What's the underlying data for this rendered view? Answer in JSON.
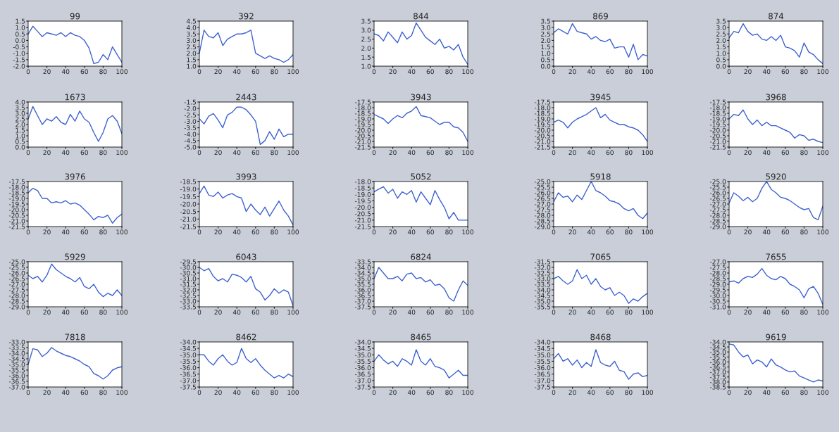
{
  "chart_data": [
    {
      "type": "line",
      "title": "99",
      "x": [
        0,
        5,
        10,
        15,
        20,
        25,
        30,
        35,
        40,
        45,
        50,
        55,
        60,
        65,
        70,
        75,
        80,
        85,
        90,
        95,
        100
      ],
      "series": [
        {
          "color": "#3d62d0",
          "values": [
            0.5,
            1.1,
            0.7,
            0.3,
            0.6,
            0.5,
            0.4,
            0.6,
            0.3,
            0.6,
            0.4,
            0.3,
            0.0,
            -0.6,
            -1.8,
            -1.7,
            -1.1,
            -1.5,
            -0.5,
            -1.1,
            -1.7
          ]
        }
      ],
      "xlim": [
        0,
        100
      ],
      "xticks": [
        0,
        20,
        40,
        60,
        80,
        100
      ],
      "ylim": [
        -2.0,
        1.5
      ],
      "yticks": [
        {
          "value": -2,
          "label": "-2.0"
        },
        -1.5,
        {
          "value": -1,
          "label": "-1.0"
        },
        -0.5,
        {
          "value": 0,
          "label": "0.0"
        },
        0.5,
        {
          "value": 1,
          "label": "1.0"
        },
        1.5
      ],
      "grid": false
    },
    {
      "type": "line",
      "title": "392",
      "x": [
        0,
        5,
        10,
        15,
        20,
        25,
        30,
        35,
        40,
        45,
        50,
        55,
        60,
        65,
        70,
        75,
        80,
        85,
        90,
        95,
        100
      ],
      "series": [
        {
          "color": "#3d62d0",
          "values": [
            2.0,
            3.8,
            3.3,
            3.2,
            3.6,
            2.6,
            3.1,
            3.3,
            3.5,
            3.5,
            3.6,
            3.8,
            2.0,
            1.8,
            1.6,
            1.8,
            1.6,
            1.5,
            1.3,
            1.5,
            1.9
          ]
        }
      ],
      "xlim": [
        0,
        100
      ],
      "xticks": [
        0,
        20,
        40,
        60,
        80,
        100
      ],
      "ylim": [
        1.0,
        4.5
      ],
      "yticks": [
        {
          "value": 1,
          "label": "1.0"
        },
        1.5,
        {
          "value": 2,
          "label": "2.0"
        },
        2.5,
        {
          "value": 3,
          "label": "3.0"
        },
        3.5,
        {
          "value": 4,
          "label": "4.0"
        },
        4.5
      ],
      "grid": false
    },
    {
      "type": "line",
      "title": "844",
      "x": [
        0,
        5,
        10,
        15,
        20,
        25,
        30,
        35,
        40,
        45,
        50,
        55,
        60,
        65,
        70,
        75,
        80,
        85,
        90,
        95,
        100
      ],
      "series": [
        {
          "color": "#3d62d0",
          "values": [
            2.8,
            2.7,
            2.4,
            2.9,
            2.6,
            2.3,
            2.9,
            2.5,
            2.7,
            3.4,
            3.0,
            2.6,
            2.4,
            2.2,
            2.5,
            2.0,
            2.1,
            1.9,
            2.2,
            1.5,
            1.1
          ]
        }
      ],
      "xlim": [
        0,
        100
      ],
      "xticks": [
        0,
        20,
        40,
        60,
        80,
        100
      ],
      "ylim": [
        1.0,
        3.5
      ],
      "yticks": [
        {
          "value": 1,
          "label": "1.0"
        },
        1.5,
        {
          "value": 2,
          "label": "2.0"
        },
        2.5,
        {
          "value": 3,
          "label": "3.0"
        },
        3.5
      ],
      "grid": false
    },
    {
      "type": "line",
      "title": "869",
      "x": [
        0,
        5,
        10,
        15,
        20,
        25,
        30,
        35,
        40,
        45,
        50,
        55,
        60,
        65,
        70,
        75,
        80,
        85,
        90,
        95,
        100
      ],
      "series": [
        {
          "color": "#3d62d0",
          "values": [
            2.6,
            2.9,
            2.7,
            2.5,
            3.3,
            2.7,
            2.6,
            2.5,
            2.1,
            2.3,
            2.0,
            1.9,
            2.1,
            1.4,
            1.5,
            1.5,
            0.7,
            1.7,
            0.5,
            0.9,
            0.8
          ]
        }
      ],
      "xlim": [
        0,
        100
      ],
      "xticks": [
        0,
        20,
        40,
        60,
        80,
        100
      ],
      "ylim": [
        0.0,
        3.5
      ],
      "yticks": [
        {
          "value": 0,
          "label": "0.0"
        },
        0.5,
        {
          "value": 1,
          "label": "1.0"
        },
        1.5,
        {
          "value": 2,
          "label": "2.0"
        },
        2.5,
        {
          "value": 3,
          "label": "3.0"
        },
        3.5
      ],
      "grid": false
    },
    {
      "type": "line",
      "title": "874",
      "x": [
        0,
        5,
        10,
        15,
        20,
        25,
        30,
        35,
        40,
        45,
        50,
        55,
        60,
        65,
        70,
        75,
        80,
        85,
        90,
        95,
        100
      ],
      "series": [
        {
          "color": "#3d62d0",
          "values": [
            2.2,
            2.7,
            2.6,
            3.3,
            2.7,
            2.4,
            2.5,
            2.1,
            2.0,
            2.3,
            2.0,
            2.4,
            1.5,
            1.4,
            1.2,
            0.7,
            1.8,
            1.1,
            0.9,
            0.5,
            0.2
          ]
        }
      ],
      "xlim": [
        0,
        100
      ],
      "xticks": [
        0,
        20,
        40,
        60,
        80,
        100
      ],
      "ylim": [
        0.0,
        3.5
      ],
      "yticks": [
        {
          "value": 0,
          "label": "0.0"
        },
        0.5,
        {
          "value": 1,
          "label": "1.0"
        },
        1.5,
        {
          "value": 2,
          "label": "2.0"
        },
        2.5,
        {
          "value": 3,
          "label": "3.0"
        },
        3.5
      ],
      "grid": false
    },
    {
      "type": "line",
      "title": "1673",
      "x": [
        0,
        5,
        10,
        15,
        20,
        25,
        30,
        35,
        40,
        45,
        50,
        55,
        60,
        65,
        70,
        75,
        80,
        85,
        90,
        95,
        100
      ],
      "series": [
        {
          "color": "#3d62d0",
          "values": [
            2.5,
            3.6,
            2.8,
            2.0,
            2.5,
            2.3,
            2.7,
            2.2,
            2.0,
            2.9,
            2.3,
            3.2,
            2.5,
            2.2,
            1.3,
            0.5,
            1.3,
            2.5,
            2.8,
            2.3,
            1.2
          ]
        }
      ],
      "xlim": [
        0,
        100
      ],
      "xticks": [
        0,
        20,
        40,
        60,
        80,
        100
      ],
      "ylim": [
        0.0,
        4.0
      ],
      "yticks": [
        {
          "value": 0,
          "label": "0.0"
        },
        0.5,
        {
          "value": 1,
          "label": "1.0"
        },
        1.5,
        {
          "value": 2,
          "label": "2.0"
        },
        2.5,
        {
          "value": 3,
          "label": "3.0"
        },
        3.5,
        {
          "value": 4,
          "label": "4.0"
        }
      ],
      "grid": false
    },
    {
      "type": "line",
      "title": "2443",
      "x": [
        0,
        5,
        10,
        15,
        20,
        25,
        30,
        35,
        40,
        45,
        50,
        55,
        60,
        65,
        70,
        75,
        80,
        85,
        90,
        95,
        100
      ],
      "series": [
        {
          "color": "#3d62d0",
          "values": [
            -2.8,
            -3.2,
            -2.6,
            -2.4,
            -2.9,
            -3.5,
            -2.5,
            -2.3,
            -1.9,
            -1.9,
            -2.1,
            -2.5,
            -3.0,
            -4.8,
            -4.5,
            -3.8,
            -4.4,
            -3.6,
            -4.2,
            -4.0,
            -4.0
          ]
        }
      ],
      "xlim": [
        0,
        100
      ],
      "xticks": [
        0,
        20,
        40,
        60,
        80,
        100
      ],
      "ylim": [
        -5.0,
        -1.5
      ],
      "yticks": [
        {
          "value": -5,
          "label": "-5.0"
        },
        -4.5,
        {
          "value": -4,
          "label": "-4.0"
        },
        -3.5,
        {
          "value": -3,
          "label": "-3.0"
        },
        -2.5,
        {
          "value": -2,
          "label": "-2.0"
        },
        -1.5
      ],
      "grid": false
    },
    {
      "type": "line",
      "title": "3943",
      "x": [
        0,
        5,
        10,
        15,
        20,
        25,
        30,
        35,
        40,
        45,
        50,
        55,
        60,
        65,
        70,
        75,
        80,
        85,
        90,
        95,
        100
      ],
      "series": [
        {
          "color": "#3d62d0",
          "values": [
            -18.6,
            -18.8,
            -19.0,
            -19.4,
            -19.0,
            -18.7,
            -18.9,
            -18.5,
            -18.3,
            -17.9,
            -18.7,
            -18.8,
            -18.9,
            -19.2,
            -19.5,
            -19.3,
            -19.3,
            -19.7,
            -19.8,
            -20.2,
            -21.0
          ]
        }
      ],
      "xlim": [
        0,
        100
      ],
      "xticks": [
        0,
        20,
        40,
        60,
        80,
        100
      ],
      "ylim": [
        -21.5,
        -17.5
      ],
      "yticks": [
        -21.5,
        {
          "value": -21,
          "label": "-21.0"
        },
        -20.5,
        {
          "value": -20,
          "label": "-20.0"
        },
        -19.5,
        {
          "value": -19,
          "label": "-19.0"
        },
        -18.5,
        {
          "value": -18,
          "label": "-18.0"
        },
        -17.5
      ],
      "grid": false
    },
    {
      "type": "line",
      "title": "3945",
      "x": [
        0,
        5,
        10,
        15,
        20,
        25,
        30,
        35,
        40,
        45,
        50,
        55,
        60,
        65,
        70,
        75,
        80,
        85,
        90,
        95,
        100
      ],
      "series": [
        {
          "color": "#3d62d0",
          "values": [
            -19.3,
            -19.1,
            -19.3,
            -19.8,
            -19.3,
            -19.0,
            -18.8,
            -18.6,
            -18.3,
            -18.0,
            -18.9,
            -18.6,
            -19.1,
            -19.3,
            -19.5,
            -19.5,
            -19.7,
            -19.8,
            -20.0,
            -20.4,
            -21.0
          ]
        }
      ],
      "xlim": [
        0,
        100
      ],
      "xticks": [
        0,
        20,
        40,
        60,
        80,
        100
      ],
      "ylim": [
        -21.5,
        -17.5
      ],
      "yticks": [
        -21.5,
        {
          "value": -21,
          "label": "-21.0"
        },
        -20.5,
        {
          "value": -20,
          "label": "-20.0"
        },
        -19.5,
        {
          "value": -19,
          "label": "-19.0"
        },
        -18.5,
        {
          "value": -18,
          "label": "-18.0"
        },
        -17.5
      ],
      "grid": false
    },
    {
      "type": "line",
      "title": "3968",
      "x": [
        0,
        5,
        10,
        15,
        20,
        25,
        30,
        35,
        40,
        45,
        50,
        55,
        60,
        65,
        70,
        75,
        80,
        85,
        90,
        95,
        100
      ],
      "series": [
        {
          "color": "#3d62d0",
          "values": [
            -19.0,
            -18.6,
            -18.7,
            -18.2,
            -19.0,
            -19.5,
            -19.1,
            -19.6,
            -19.3,
            -19.6,
            -19.6,
            -19.8,
            -20.0,
            -20.2,
            -20.7,
            -20.4,
            -20.5,
            -20.9,
            -20.8,
            -21.0,
            -21.1
          ]
        }
      ],
      "xlim": [
        0,
        100
      ],
      "xticks": [
        0,
        20,
        40,
        60,
        80,
        100
      ],
      "ylim": [
        -21.5,
        -17.5
      ],
      "yticks": [
        -21.5,
        {
          "value": -21,
          "label": "-21.0"
        },
        -20.5,
        {
          "value": -20,
          "label": "-20.0"
        },
        -19.5,
        {
          "value": -19,
          "label": "-19.0"
        },
        -18.5,
        {
          "value": -18,
          "label": "-18.0"
        },
        -17.5
      ],
      "grid": false
    },
    {
      "type": "line",
      "title": "3976",
      "x": [
        0,
        5,
        10,
        15,
        20,
        25,
        30,
        35,
        40,
        45,
        50,
        55,
        60,
        65,
        70,
        75,
        80,
        85,
        90,
        95,
        100
      ],
      "series": [
        {
          "color": "#3d62d0",
          "values": [
            -18.5,
            -18.1,
            -18.3,
            -19.0,
            -19.0,
            -19.4,
            -19.3,
            -19.4,
            -19.2,
            -19.5,
            -19.4,
            -19.6,
            -20.0,
            -20.4,
            -20.9,
            -20.6,
            -20.7,
            -20.5,
            -21.2,
            -20.7,
            -20.4
          ]
        }
      ],
      "xlim": [
        0,
        100
      ],
      "xticks": [
        0,
        20,
        40,
        60,
        80,
        100
      ],
      "ylim": [
        -21.5,
        -17.5
      ],
      "yticks": [
        -21.5,
        {
          "value": -21,
          "label": "-21.0"
        },
        -20.5,
        {
          "value": -20,
          "label": "-20.0"
        },
        -19.5,
        {
          "value": -19,
          "label": "-19.0"
        },
        -18.5,
        {
          "value": -18,
          "label": "-18.0"
        },
        -17.5
      ],
      "grid": false
    },
    {
      "type": "line",
      "title": "3993",
      "x": [
        0,
        5,
        10,
        15,
        20,
        25,
        30,
        35,
        40,
        45,
        50,
        55,
        60,
        65,
        70,
        75,
        80,
        85,
        90,
        95,
        100
      ],
      "series": [
        {
          "color": "#3d62d0",
          "values": [
            -19.3,
            -18.8,
            -19.4,
            -19.5,
            -19.2,
            -19.6,
            -19.4,
            -19.3,
            -19.5,
            -19.6,
            -20.5,
            -20.0,
            -20.4,
            -20.7,
            -20.2,
            -20.8,
            -20.3,
            -19.8,
            -20.4,
            -20.8,
            -21.4
          ]
        }
      ],
      "xlim": [
        0,
        100
      ],
      "xticks": [
        0,
        20,
        40,
        60,
        80,
        100
      ],
      "ylim": [
        -21.5,
        -18.5
      ],
      "yticks": [
        -21.5,
        {
          "value": -21,
          "label": "-21.0"
        },
        -20.5,
        {
          "value": -20,
          "label": "-20.0"
        },
        -19.5,
        {
          "value": -19,
          "label": "-19.0"
        },
        -18.5
      ],
      "grid": false
    },
    {
      "type": "line",
      "title": "5052",
      "x": [
        0,
        5,
        10,
        15,
        20,
        25,
        30,
        35,
        40,
        45,
        50,
        55,
        60,
        65,
        70,
        75,
        80,
        85,
        90,
        95,
        100
      ],
      "series": [
        {
          "color": "#3d62d0",
          "values": [
            -18.8,
            -18.6,
            -18.4,
            -18.9,
            -18.6,
            -19.3,
            -18.8,
            -19.0,
            -18.7,
            -19.6,
            -18.8,
            -19.3,
            -19.8,
            -18.7,
            -19.4,
            -20.0,
            -20.9,
            -20.4,
            -21.0,
            -21.0,
            -21.0
          ]
        }
      ],
      "xlim": [
        0,
        100
      ],
      "xticks": [
        0,
        20,
        40,
        60,
        80,
        100
      ],
      "ylim": [
        -21.5,
        -18.0
      ],
      "yticks": [
        -21.5,
        {
          "value": -21,
          "label": "-21.0"
        },
        -20.5,
        {
          "value": -20,
          "label": "-20.0"
        },
        -19.5,
        {
          "value": -19,
          "label": "-19.0"
        },
        -18.5,
        {
          "value": -18,
          "label": "-18.0"
        }
      ],
      "grid": false
    },
    {
      "type": "line",
      "title": "5918",
      "x": [
        0,
        5,
        10,
        15,
        20,
        25,
        30,
        35,
        40,
        45,
        50,
        55,
        60,
        65,
        70,
        75,
        80,
        85,
        90,
        95,
        100
      ],
      "series": [
        {
          "color": "#3d62d0",
          "values": [
            -26.8,
            -26.0,
            -26.4,
            -26.3,
            -26.8,
            -26.2,
            -26.6,
            -25.8,
            -25.0,
            -25.8,
            -26.0,
            -26.3,
            -26.7,
            -26.8,
            -27.0,
            -27.4,
            -27.6,
            -27.4,
            -28.0,
            -28.3,
            -27.8
          ]
        }
      ],
      "xlim": [
        0,
        100
      ],
      "xticks": [
        0,
        20,
        40,
        60,
        80,
        100
      ],
      "ylim": [
        -29.0,
        -25.0
      ],
      "yticks": [
        {
          "value": -29,
          "label": "-29.0"
        },
        -28.5,
        {
          "value": -28,
          "label": "-28.0"
        },
        -27.5,
        {
          "value": -27,
          "label": "-27.0"
        },
        -26.5,
        {
          "value": -26,
          "label": "-26.0"
        },
        -25.5,
        {
          "value": -25,
          "label": "-25.0"
        }
      ],
      "grid": false
    },
    {
      "type": "line",
      "title": "5920",
      "x": [
        0,
        5,
        10,
        15,
        20,
        25,
        30,
        35,
        40,
        45,
        50,
        55,
        60,
        65,
        70,
        75,
        80,
        85,
        90,
        95,
        100
      ],
      "series": [
        {
          "color": "#3d62d0",
          "values": [
            -26.9,
            -26.0,
            -26.3,
            -26.7,
            -26.4,
            -26.8,
            -26.5,
            -25.6,
            -25.0,
            -25.7,
            -26.0,
            -26.4,
            -26.5,
            -26.7,
            -27.0,
            -27.3,
            -27.5,
            -27.4,
            -28.2,
            -28.4,
            -27.2
          ]
        }
      ],
      "xlim": [
        0,
        100
      ],
      "xticks": [
        0,
        20,
        40,
        60,
        80,
        100
      ],
      "ylim": [
        -29.0,
        -25.0
      ],
      "yticks": [
        {
          "value": -29,
          "label": "-29.0"
        },
        -28.5,
        {
          "value": -28,
          "label": "-28.0"
        },
        -27.5,
        {
          "value": -27,
          "label": "-27.0"
        },
        -26.5,
        {
          "value": -26,
          "label": "-26.0"
        },
        -25.5,
        {
          "value": -25,
          "label": "-25.0"
        }
      ],
      "grid": false
    },
    {
      "type": "line",
      "title": "5929",
      "x": [
        0,
        5,
        10,
        15,
        20,
        25,
        30,
        35,
        40,
        45,
        50,
        55,
        60,
        65,
        70,
        75,
        80,
        85,
        90,
        95,
        100
      ],
      "series": [
        {
          "color": "#3d62d0",
          "values": [
            -26.2,
            -26.5,
            -26.3,
            -26.8,
            -26.2,
            -25.2,
            -25.7,
            -26.0,
            -26.3,
            -26.5,
            -26.8,
            -26.4,
            -27.2,
            -27.4,
            -27.0,
            -27.7,
            -28.1,
            -27.8,
            -28.0,
            -27.5,
            -28.0
          ]
        }
      ],
      "xlim": [
        0,
        100
      ],
      "xticks": [
        0,
        20,
        40,
        60,
        80,
        100
      ],
      "ylim": [
        -29.0,
        -25.0
      ],
      "yticks": [
        {
          "value": -29,
          "label": "-29.0"
        },
        -28.5,
        {
          "value": -28,
          "label": "-28.0"
        },
        -27.5,
        {
          "value": -27,
          "label": "-27.0"
        },
        -26.5,
        {
          "value": -26,
          "label": "-26.0"
        },
        -25.5,
        {
          "value": -25,
          "label": "-25.0"
        }
      ],
      "grid": false
    },
    {
      "type": "line",
      "title": "6043",
      "x": [
        0,
        5,
        10,
        15,
        20,
        25,
        30,
        35,
        40,
        45,
        50,
        55,
        60,
        65,
        70,
        75,
        80,
        85,
        90,
        95,
        100
      ],
      "series": [
        {
          "color": "#3d62d0",
          "values": [
            -30.0,
            -30.3,
            -30.1,
            -30.8,
            -31.2,
            -31.0,
            -31.3,
            -30.6,
            -30.7,
            -30.9,
            -31.3,
            -30.8,
            -31.9,
            -32.2,
            -32.9,
            -32.5,
            -31.9,
            -32.3,
            -32.0,
            -32.2,
            -33.4
          ]
        }
      ],
      "xlim": [
        0,
        100
      ],
      "xticks": [
        0,
        20,
        40,
        60,
        80,
        100
      ],
      "ylim": [
        -33.5,
        -29.5
      ],
      "yticks": [
        -33.5,
        {
          "value": -33,
          "label": "-33.0"
        },
        -32.5,
        {
          "value": -32,
          "label": "-32.0"
        },
        -31.5,
        {
          "value": -31,
          "label": "-31.0"
        },
        -30.5,
        {
          "value": -30,
          "label": "-30.0"
        },
        -29.5
      ],
      "grid": false
    },
    {
      "type": "line",
      "title": "6824",
      "x": [
        0,
        5,
        10,
        15,
        20,
        25,
        30,
        35,
        40,
        45,
        50,
        55,
        60,
        65,
        70,
        75,
        80,
        85,
        90,
        95,
        100
      ],
      "series": [
        {
          "color": "#3d62d0",
          "values": [
            -35.0,
            -34.0,
            -34.5,
            -35.0,
            -35.0,
            -34.8,
            -35.2,
            -34.6,
            -34.5,
            -35.0,
            -34.9,
            -35.3,
            -35.1,
            -35.6,
            -35.5,
            -35.9,
            -36.7,
            -37.0,
            -36.0,
            -35.2,
            -35.6
          ]
        }
      ],
      "xlim": [
        0,
        100
      ],
      "xticks": [
        0,
        20,
        40,
        60,
        80,
        100
      ],
      "ylim": [
        -37.5,
        -33.5
      ],
      "yticks": [
        -37.5,
        {
          "value": -37,
          "label": "-37.0"
        },
        -36.5,
        {
          "value": -36,
          "label": "-36.0"
        },
        -35.5,
        {
          "value": -35,
          "label": "-35.0"
        },
        -34.5,
        {
          "value": -34,
          "label": "-34.0"
        },
        -33.5
      ],
      "grid": false
    },
    {
      "type": "line",
      "title": "7065",
      "x": [
        0,
        5,
        10,
        15,
        20,
        25,
        30,
        35,
        40,
        45,
        50,
        55,
        60,
        65,
        70,
        75,
        80,
        85,
        90,
        95,
        100
      ],
      "series": [
        {
          "color": "#3d62d0",
          "values": [
            -33.0,
            -32.8,
            -33.2,
            -33.5,
            -33.2,
            -32.2,
            -33.0,
            -32.7,
            -33.5,
            -33.0,
            -33.7,
            -34.0,
            -33.8,
            -34.5,
            -34.2,
            -34.5,
            -35.2,
            -34.8,
            -35.0,
            -34.6,
            -34.3
          ]
        }
      ],
      "xlim": [
        0,
        100
      ],
      "xticks": [
        0,
        20,
        40,
        60,
        80,
        100
      ],
      "ylim": [
        -35.5,
        -31.5
      ],
      "yticks": [
        -35.5,
        {
          "value": -35,
          "label": "-35.0"
        },
        -34.5,
        {
          "value": -34,
          "label": "-34.0"
        },
        -33.5,
        {
          "value": -33,
          "label": "-33.0"
        },
        -32.5,
        {
          "value": -32,
          "label": "-32.0"
        },
        -31.5
      ],
      "grid": false
    },
    {
      "type": "line",
      "title": "7655",
      "x": [
        0,
        5,
        10,
        15,
        20,
        25,
        30,
        35,
        40,
        45,
        50,
        55,
        60,
        65,
        70,
        75,
        80,
        85,
        90,
        95,
        100
      ],
      "series": [
        {
          "color": "#3d62d0",
          "values": [
            -28.8,
            -28.7,
            -28.9,
            -28.5,
            -28.3,
            -28.4,
            -28.1,
            -27.6,
            -28.2,
            -28.5,
            -28.6,
            -28.3,
            -28.5,
            -29.0,
            -29.2,
            -29.5,
            -30.2,
            -29.4,
            -29.2,
            -29.8,
            -30.8
          ]
        }
      ],
      "xlim": [
        0,
        100
      ],
      "xticks": [
        0,
        20,
        40,
        60,
        80,
        100
      ],
      "ylim": [
        -31.0,
        -27.0
      ],
      "yticks": [
        {
          "value": -31,
          "label": "-31.0"
        },
        -30.5,
        {
          "value": -30,
          "label": "-30.0"
        },
        -29.5,
        {
          "value": -29,
          "label": "-29.0"
        },
        -28.5,
        {
          "value": -28,
          "label": "-28.0"
        },
        -27.5,
        {
          "value": -27,
          "label": "-27.0"
        }
      ],
      "grid": false
    },
    {
      "type": "line",
      "title": "7818",
      "x": [
        0,
        5,
        10,
        15,
        20,
        25,
        30,
        35,
        40,
        45,
        50,
        55,
        60,
        65,
        70,
        75,
        80,
        85,
        90,
        95,
        100
      ],
      "series": [
        {
          "color": "#3d62d0",
          "values": [
            -35.0,
            -33.6,
            -33.7,
            -34.3,
            -34.0,
            -33.5,
            -33.8,
            -34.0,
            -34.2,
            -34.3,
            -34.5,
            -34.7,
            -35.0,
            -35.2,
            -35.8,
            -36.0,
            -36.3,
            -36.0,
            -35.5,
            -35.3,
            -35.2
          ]
        }
      ],
      "xlim": [
        0,
        100
      ],
      "xticks": [
        0,
        20,
        40,
        60,
        80,
        100
      ],
      "ylim": [
        -37.0,
        -33.0
      ],
      "yticks": [
        {
          "value": -37,
          "label": "-37.0"
        },
        -36.5,
        {
          "value": -36,
          "label": "-36.0"
        },
        -35.5,
        {
          "value": -35,
          "label": "-35.0"
        },
        -34.5,
        {
          "value": -34,
          "label": "-34.0"
        },
        -33.5,
        {
          "value": -33,
          "label": "-33.0"
        }
      ],
      "grid": false
    },
    {
      "type": "line",
      "title": "8462",
      "x": [
        0,
        5,
        10,
        15,
        20,
        25,
        30,
        35,
        40,
        45,
        50,
        55,
        60,
        65,
        70,
        75,
        80,
        85,
        90,
        95,
        100
      ],
      "series": [
        {
          "color": "#3d62d0",
          "values": [
            -35.0,
            -35.0,
            -35.5,
            -35.8,
            -35.3,
            -35.0,
            -35.5,
            -35.8,
            -35.6,
            -34.5,
            -35.3,
            -35.6,
            -35.3,
            -35.8,
            -36.2,
            -36.5,
            -36.8,
            -36.6,
            -36.8,
            -36.5,
            -36.7
          ]
        }
      ],
      "xlim": [
        0,
        100
      ],
      "xticks": [
        0,
        20,
        40,
        60,
        80,
        100
      ],
      "ylim": [
        -37.5,
        -34.0
      ],
      "yticks": [
        -37.5,
        {
          "value": -37,
          "label": "-37.0"
        },
        -36.5,
        {
          "value": -36,
          "label": "-36.0"
        },
        -35.5,
        {
          "value": -35,
          "label": "-35.0"
        },
        -34.5,
        {
          "value": -34,
          "label": "-34.0"
        }
      ],
      "grid": false
    },
    {
      "type": "line",
      "title": "8465",
      "x": [
        0,
        5,
        10,
        15,
        20,
        25,
        30,
        35,
        40,
        45,
        50,
        55,
        60,
        65,
        70,
        75,
        80,
        85,
        90,
        95,
        100
      ],
      "series": [
        {
          "color": "#3d62d0",
          "values": [
            -35.5,
            -35.0,
            -35.4,
            -35.7,
            -35.5,
            -35.9,
            -35.3,
            -35.5,
            -35.8,
            -34.6,
            -35.5,
            -35.8,
            -35.3,
            -35.9,
            -36.0,
            -36.2,
            -36.8,
            -36.5,
            -36.2,
            -36.6,
            -36.6
          ]
        }
      ],
      "xlim": [
        0,
        100
      ],
      "xticks": [
        0,
        20,
        40,
        60,
        80,
        100
      ],
      "ylim": [
        -37.5,
        -34.0
      ],
      "yticks": [
        -37.5,
        {
          "value": -37,
          "label": "-37.0"
        },
        -36.5,
        {
          "value": -36,
          "label": "-36.0"
        },
        -35.5,
        {
          "value": -35,
          "label": "-35.0"
        },
        -34.5,
        {
          "value": -34,
          "label": "-34.0"
        }
      ],
      "grid": false
    },
    {
      "type": "line",
      "title": "8468",
      "x": [
        0,
        5,
        10,
        15,
        20,
        25,
        30,
        35,
        40,
        45,
        50,
        55,
        60,
        65,
        70,
        75,
        80,
        85,
        90,
        95,
        100
      ],
      "series": [
        {
          "color": "#3d62d0",
          "values": [
            -35.3,
            -34.9,
            -35.5,
            -35.3,
            -35.8,
            -35.4,
            -36.0,
            -35.6,
            -35.9,
            -34.6,
            -35.6,
            -35.8,
            -35.9,
            -35.5,
            -36.2,
            -36.3,
            -36.9,
            -36.5,
            -36.4,
            -36.7,
            -36.6
          ]
        }
      ],
      "xlim": [
        0,
        100
      ],
      "xticks": [
        0,
        20,
        40,
        60,
        80,
        100
      ],
      "ylim": [
        -37.5,
        -34.0
      ],
      "yticks": [
        -37.5,
        {
          "value": -37,
          "label": "-37.0"
        },
        -36.5,
        {
          "value": -36,
          "label": "-36.0"
        },
        -35.5,
        {
          "value": -35,
          "label": "-35.0"
        },
        -34.5,
        {
          "value": -34,
          "label": "-34.0"
        }
      ],
      "grid": false
    },
    {
      "type": "line",
      "title": "9619",
      "x": [
        0,
        5,
        10,
        15,
        20,
        25,
        30,
        35,
        40,
        45,
        50,
        55,
        60,
        65,
        70,
        75,
        80,
        85,
        90,
        95,
        100
      ],
      "series": [
        {
          "color": "#3d62d0",
          "values": [
            -34.2,
            -34.3,
            -35.0,
            -35.5,
            -35.3,
            -36.2,
            -35.8,
            -36.0,
            -36.5,
            -35.7,
            -36.3,
            -36.5,
            -36.8,
            -37.0,
            -36.9,
            -37.4,
            -37.6,
            -37.8,
            -38.0,
            -37.8,
            -37.9
          ]
        }
      ],
      "xlim": [
        0,
        100
      ],
      "xticks": [
        0,
        20,
        40,
        60,
        80,
        100
      ],
      "ylim": [
        -38.5,
        -34.0
      ],
      "yticks": [
        -38.5,
        {
          "value": -38,
          "label": "-38.0"
        },
        -37.5,
        {
          "value": -37,
          "label": "-37.0"
        },
        -36.5,
        {
          "value": -36,
          "label": "-36.0"
        },
        -35.5,
        {
          "value": -35,
          "label": "-35.0"
        },
        -34.5,
        {
          "value": -34,
          "label": "-34.0"
        }
      ],
      "grid": false
    }
  ]
}
